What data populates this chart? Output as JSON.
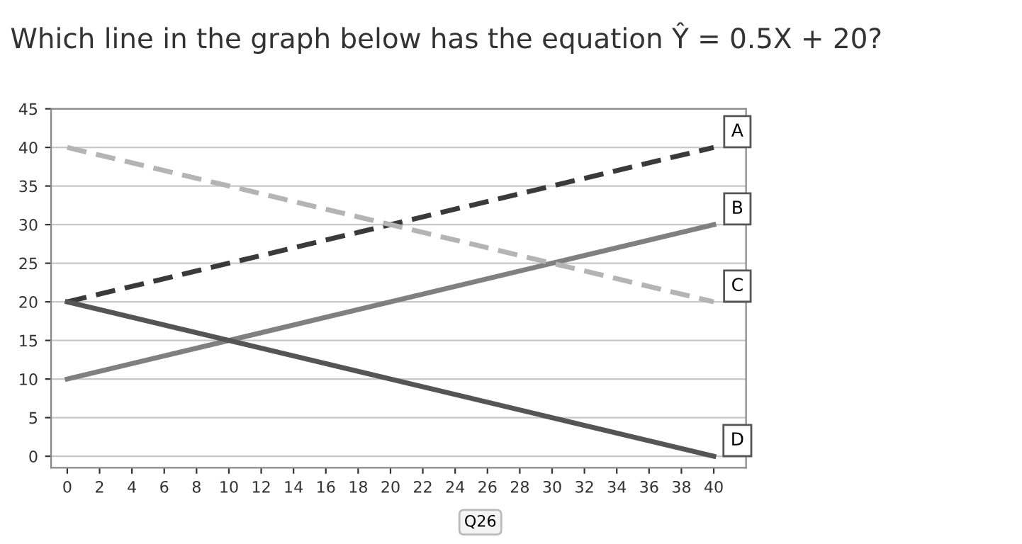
{
  "chart_data": {
    "type": "line",
    "title": "Which line in the graph below has the equation Ŷ = 0.5X + 20?",
    "x": [
      0,
      40
    ],
    "series": [
      {
        "name": "A",
        "color": "#3a3a3a",
        "line_style": "dashed",
        "values": [
          20,
          40
        ]
      },
      {
        "name": "B",
        "color": "#808080",
        "line_style": "solid",
        "values": [
          10,
          30
        ]
      },
      {
        "name": "C",
        "color": "#b4b4b4",
        "line_style": "dashed",
        "values": [
          40,
          20
        ]
      },
      {
        "name": "D",
        "color": "#555555",
        "line_style": "solid",
        "values": [
          20,
          0
        ]
      }
    ],
    "xlim": [
      -1,
      42
    ],
    "xticks": [
      0,
      2,
      4,
      6,
      8,
      10,
      12,
      14,
      16,
      18,
      20,
      22,
      24,
      26,
      28,
      30,
      32,
      34,
      36,
      38,
      40
    ],
    "ylim": [
      -1.5,
      45
    ],
    "yticks": [
      0,
      5,
      10,
      15,
      20,
      25,
      30,
      35,
      40,
      45
    ],
    "grid": "y",
    "legend": false,
    "marker": "none",
    "annotations": [
      "Q26"
    ]
  }
}
